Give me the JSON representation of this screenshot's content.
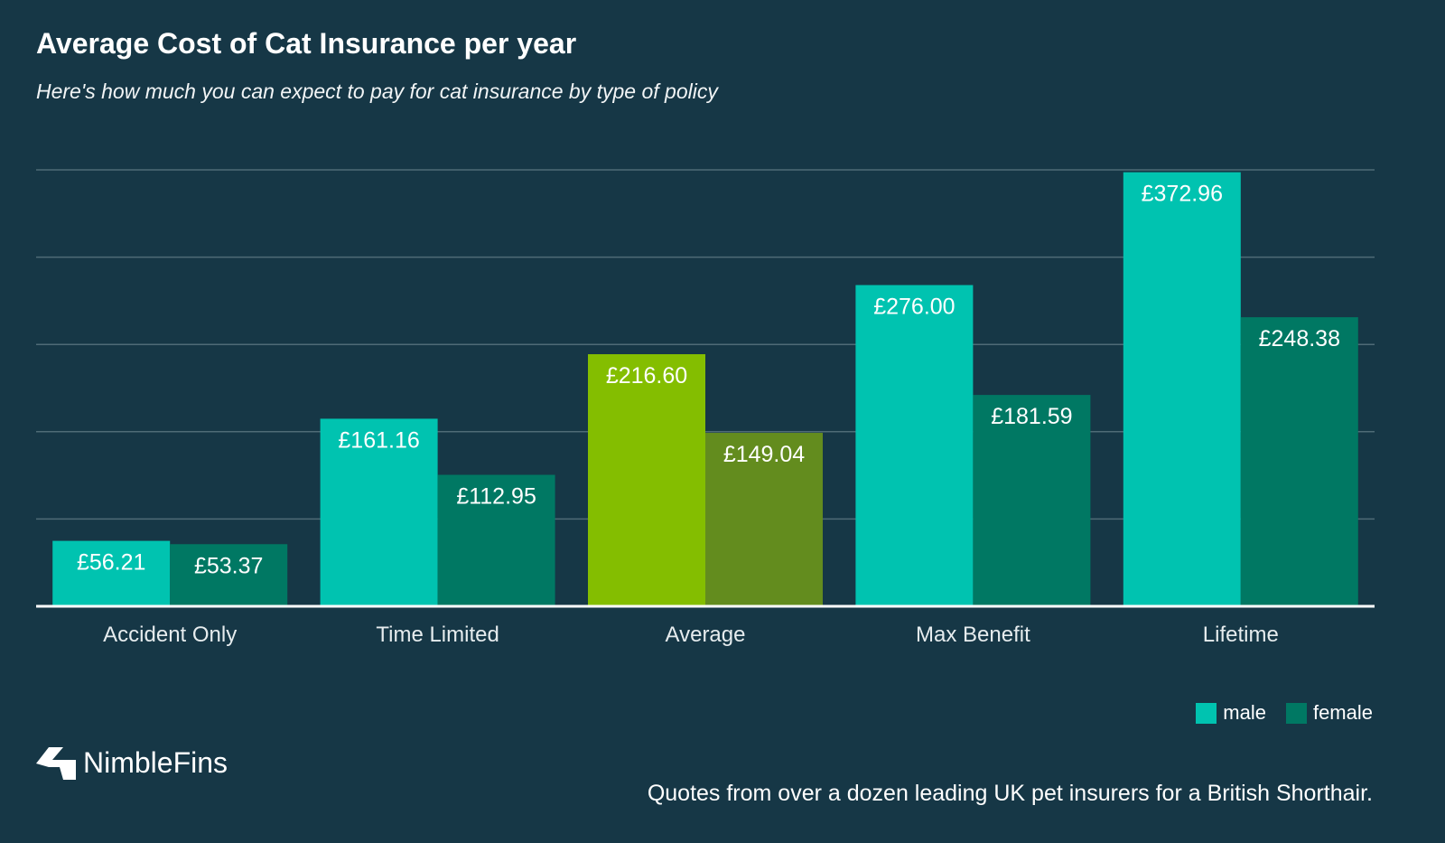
{
  "chart_data": {
    "type": "bar",
    "title": "Average Cost of Cat Insurance per year",
    "subtitle": "Here's how much you can expect to pay for cat insurance by type of policy",
    "categories": [
      "Accident Only",
      "Time Limited",
      "Average",
      "Max Benefit",
      "Lifetime"
    ],
    "series": [
      {
        "name": "male",
        "values": [
          56.21,
          161.16,
          216.6,
          276.0,
          372.96
        ],
        "labels": [
          "£56.21",
          "£161.16",
          "£216.60",
          "£276.00",
          "£372.96"
        ],
        "color": "#00c3b0"
      },
      {
        "name": "female",
        "values": [
          53.37,
          112.95,
          149.04,
          181.59,
          248.38
        ],
        "labels": [
          "£53.37",
          "£112.95",
          "£149.04",
          "£181.59",
          "£248.38"
        ],
        "color": "#007863"
      }
    ],
    "highlight": {
      "category": "Average",
      "colors": [
        "#84be00",
        "#638c1e"
      ]
    },
    "ylim": [
      0,
      375
    ],
    "grid": true,
    "legend_position": "bottom-right"
  },
  "brand": {
    "name": "NimbleFins",
    "logo_icon": "nimblefins-logo-icon"
  },
  "footnote": "Quotes from over a dozen leading UK pet insurers for a British Shorthair.",
  "colors": {
    "background": "#163746",
    "gridline": "#4f6b76",
    "axis": "#ffffff",
    "category_label": "#e6ecee"
  }
}
